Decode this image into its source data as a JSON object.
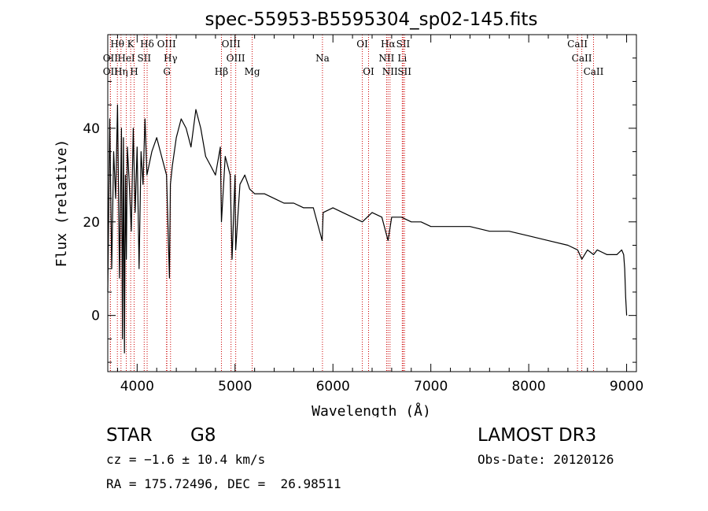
{
  "colors": {
    "spectrum": "#000000",
    "line_marker": "#cc0000",
    "axes": "#000000"
  },
  "chart_data": {
    "type": "line",
    "title": "spec-55953-B5595304_sp02-145.fits",
    "xlabel": "Wavelength (Å)",
    "ylabel": "Flux (relative)",
    "xlim": [
      3700,
      9100
    ],
    "ylim": [
      -12,
      60
    ],
    "xticks": [
      4000,
      5000,
      6000,
      7000,
      8000,
      9000
    ],
    "xtick_labels": [
      "4000",
      "5000",
      "6000",
      "7000",
      "8000",
      "9000"
    ],
    "yticks": [
      0,
      20,
      40
    ],
    "ytick_labels": [
      "0",
      "20",
      "40"
    ],
    "series": [
      {
        "name": "flux",
        "x": [
          3700,
          3720,
          3740,
          3760,
          3780,
          3800,
          3820,
          3840,
          3850,
          3860,
          3870,
          3880,
          3890,
          3900,
          3920,
          3940,
          3960,
          3980,
          4000,
          4020,
          4040,
          4060,
          4080,
          4100,
          4120,
          4150,
          4200,
          4250,
          4300,
          4330,
          4340,
          4360,
          4400,
          4450,
          4500,
          4550,
          4600,
          4650,
          4700,
          4750,
          4800,
          4850,
          4861,
          4900,
          4950,
          4970,
          5000,
          5007,
          5050,
          5100,
          5150,
          5200,
          5300,
          5400,
          5500,
          5600,
          5700,
          5800,
          5890,
          5900,
          6000,
          6100,
          6200,
          6300,
          6400,
          6500,
          6563,
          6600,
          6700,
          6800,
          6900,
          7000,
          7200,
          7400,
          7600,
          7800,
          8000,
          8200,
          8400,
          8500,
          8542,
          8600,
          8662,
          8700,
          8800,
          8900,
          8950,
          8970,
          8980,
          8990,
          9000
        ],
        "y": [
          5,
          42,
          10,
          35,
          25,
          45,
          8,
          40,
          -5,
          38,
          -8,
          30,
          12,
          36,
          28,
          18,
          40,
          22,
          36,
          10,
          35,
          28,
          42,
          30,
          32,
          35,
          38,
          34,
          30,
          8,
          28,
          32,
          38,
          42,
          40,
          36,
          44,
          40,
          34,
          32,
          30,
          36,
          20,
          34,
          30,
          12,
          30,
          14,
          28,
          30,
          27,
          26,
          26,
          25,
          24,
          24,
          23,
          23,
          16,
          22,
          23,
          22,
          21,
          20,
          22,
          21,
          16,
          21,
          21,
          20,
          20,
          19,
          19,
          19,
          18,
          18,
          17,
          16,
          15,
          14,
          12,
          14,
          13,
          14,
          13,
          13,
          14,
          13,
          10,
          4,
          0
        ]
      }
    ],
    "line_markers": [
      {
        "label": "OII",
        "wavelength": 3727,
        "row": 2
      },
      {
        "label": "OII",
        "wavelength": 3727,
        "row": 3
      },
      {
        "label": "Hθ",
        "wavelength": 3798,
        "row": 1
      },
      {
        "label": "Hη",
        "wavelength": 3835,
        "row": 3
      },
      {
        "label": "HeI",
        "wavelength": 3889,
        "row": 2
      },
      {
        "label": "K",
        "wavelength": 3934,
        "row": 1
      },
      {
        "label": "H",
        "wavelength": 3969,
        "row": 3
      },
      {
        "label": "SII",
        "wavelength": 4072,
        "row": 2
      },
      {
        "label": "Hδ",
        "wavelength": 4102,
        "row": 1
      },
      {
        "label": "OIII",
        "wavelength": 4300,
        "row": 1
      },
      {
        "label": "Hγ",
        "wavelength": 4341,
        "row": 2
      },
      {
        "label": "G",
        "wavelength": 4304,
        "row": 3
      },
      {
        "label": "Hβ",
        "wavelength": 4861,
        "row": 3
      },
      {
        "label": "OIII",
        "wavelength": 4959,
        "row": 1
      },
      {
        "label": "OIII",
        "wavelength": 5007,
        "row": 2
      },
      {
        "label": "Mg",
        "wavelength": 5175,
        "row": 3
      },
      {
        "label": "Na",
        "wavelength": 5893,
        "row": 2
      },
      {
        "label": "OI",
        "wavelength": 6300,
        "row": 1
      },
      {
        "label": "OI",
        "wavelength": 6364,
        "row": 3
      },
      {
        "label": "Hα",
        "wavelength": 6563,
        "row": 1
      },
      {
        "label": "NII",
        "wavelength": 6548,
        "row": 2
      },
      {
        "label": "NII",
        "wavelength": 6583,
        "row": 3
      },
      {
        "label": "SII",
        "wavelength": 6717,
        "row": 1
      },
      {
        "label": "Li",
        "wavelength": 6708,
        "row": 2
      },
      {
        "label": "SII",
        "wavelength": 6731,
        "row": 3
      },
      {
        "label": "CaII",
        "wavelength": 8498,
        "row": 1
      },
      {
        "label": "CaII",
        "wavelength": 8542,
        "row": 2
      },
      {
        "label": "CaII",
        "wavelength": 8662,
        "row": 3
      }
    ]
  },
  "info": {
    "object_class": "STAR",
    "subclass": "G8",
    "survey": "LAMOST DR3",
    "cz": "cz = −1.6 ± 10.4 km/s",
    "obs_date": "Obs-Date: 20120126",
    "coords": "RA = 175.72496, DEC =  26.98511"
  }
}
